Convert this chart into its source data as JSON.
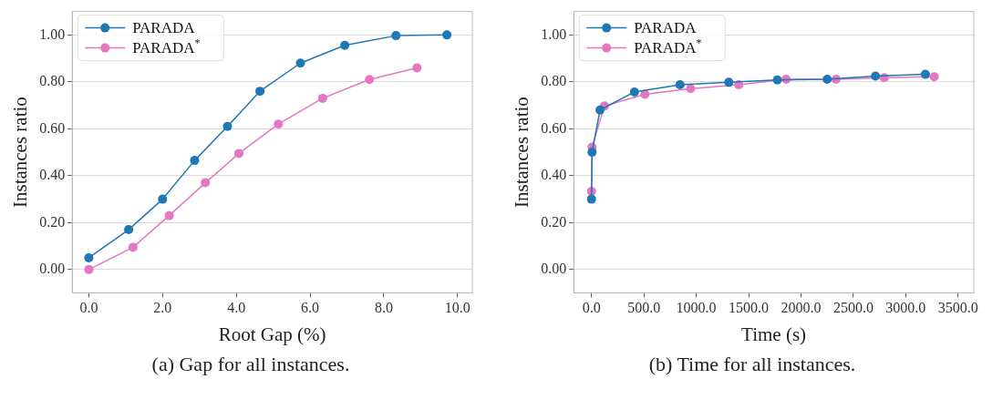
{
  "chart_data": [
    {
      "type": "line",
      "xlabel": "Root Gap (%)",
      "ylabel": "Instances ratio",
      "annotations": [
        "(a) Gap for all instances."
      ],
      "legend": "top left",
      "grid": "y",
      "marker": "circle",
      "line_style": "solid",
      "xlim": [
        -0.45,
        10.4
      ],
      "ylim": [
        -0.1,
        1.1
      ],
      "xticks": [
        {
          "value": 0,
          "label": "0.0"
        },
        {
          "value": 2,
          "label": "2.0"
        },
        {
          "value": 4,
          "label": "4.0"
        },
        {
          "value": 6,
          "label": "6.0"
        },
        {
          "value": 8,
          "label": "8.0"
        },
        {
          "value": 10,
          "label": "10.0"
        }
      ],
      "yticks": [
        {
          "value": 0,
          "label": "0.00"
        },
        {
          "value": 0.2,
          "label": "0.20"
        },
        {
          "value": 0.4,
          "label": "0.40"
        },
        {
          "value": 0.6,
          "label": "0.60"
        },
        {
          "value": 0.8,
          "label": "0.80"
        },
        {
          "value": 1,
          "label": "1.00"
        }
      ],
      "series": [
        {
          "name": "PARADA",
          "color": "#1f77b4",
          "x": [
            0,
            1.08,
            2.0,
            2.87,
            3.76,
            4.64,
            5.74,
            6.94,
            8.33,
            9.71
          ],
          "values": [
            0.05,
            0.17,
            0.3,
            0.465,
            0.61,
            0.76,
            0.88,
            0.956,
            0.997,
            1.0
          ]
        },
        {
          "name": "PARADA$^{*}$",
          "color": "#e377c2",
          "x": [
            0,
            1.2,
            2.18,
            3.16,
            4.07,
            5.14,
            6.34,
            7.61,
            8.9
          ],
          "values": [
            0.0,
            0.095,
            0.23,
            0.37,
            0.495,
            0.62,
            0.73,
            0.81,
            0.86
          ]
        }
      ]
    },
    {
      "type": "line",
      "xlabel": "Time (s)",
      "ylabel": "Instances ratio",
      "annotations": [
        "(b) Time for all instances."
      ],
      "legend": "top left",
      "grid": "y",
      "marker": "circle",
      "line_style": "solid",
      "xlim": [
        -170,
        3650
      ],
      "ylim": [
        -0.1,
        1.1
      ],
      "xticks": [
        {
          "value": 0,
          "label": "0.0"
        },
        {
          "value": 500,
          "label": "500.0"
        },
        {
          "value": 1000,
          "label": "1000.0"
        },
        {
          "value": 1500,
          "label": "1500.0"
        },
        {
          "value": 2000,
          "label": "2000.0"
        },
        {
          "value": 2500,
          "label": "2500.0"
        },
        {
          "value": 3000,
          "label": "3000.0"
        },
        {
          "value": 3500,
          "label": "3500.0"
        }
      ],
      "yticks": [
        {
          "value": 0,
          "label": "0.00"
        },
        {
          "value": 0.2,
          "label": "0.20"
        },
        {
          "value": 0.4,
          "label": "0.40"
        },
        {
          "value": 0.6,
          "label": "0.60"
        },
        {
          "value": 0.8,
          "label": "0.80"
        },
        {
          "value": 1,
          "label": "1.00"
        }
      ],
      "series": [
        {
          "name": "PARADA",
          "color": "#1f77b4",
          "x": [
            0,
            5,
            81,
            410,
            845,
            1311,
            1774,
            2250,
            2711,
            3188
          ],
          "values": [
            0.3,
            0.5,
            0.68,
            0.757,
            0.788,
            0.798,
            0.808,
            0.811,
            0.825,
            0.832
          ]
        },
        {
          "name": "PARADA$^{*}$",
          "color": "#e377c2",
          "x": [
            0,
            5,
            123,
            510,
            946,
            1406,
            1858,
            2335,
            2795,
            3272
          ],
          "values": [
            0.333,
            0.522,
            0.697,
            0.747,
            0.771,
            0.788,
            0.811,
            0.811,
            0.818,
            0.822
          ]
        }
      ]
    }
  ]
}
